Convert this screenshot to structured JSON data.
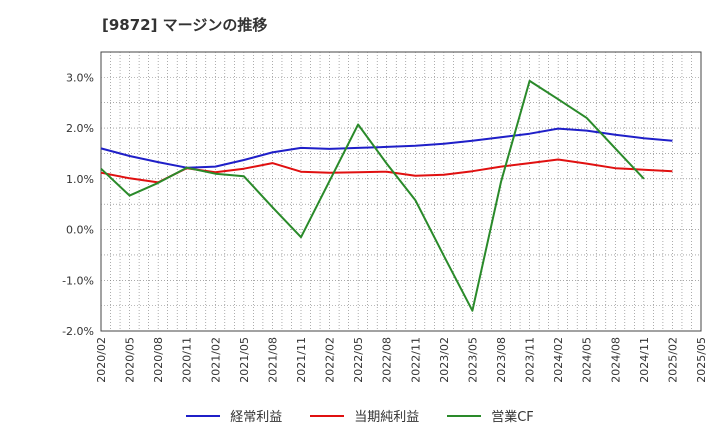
{
  "chart_data": {
    "type": "line",
    "title": "[9872]  マージンの推移",
    "ylim": [
      -2.0,
      3.5
    ],
    "yticks": [
      "3.0%",
      "2.0%",
      "1.0%",
      "0.0%",
      "-1.0%",
      "-2.0%"
    ],
    "ytick_values": [
      3.0,
      2.0,
      1.0,
      0.0,
      -1.0,
      -2.0
    ],
    "x": [
      "2020/02",
      "2020/05",
      "2020/08",
      "2020/11",
      "2021/02",
      "2021/05",
      "2021/08",
      "2021/11",
      "2022/02",
      "2022/05",
      "2022/08",
      "2022/11",
      "2023/02",
      "2023/05",
      "2023/08",
      "2023/11",
      "2024/02",
      "2024/05",
      "2024/08",
      "2024/11",
      "2025/02",
      "2025/05"
    ],
    "grid": true,
    "legend_position": "bottom",
    "series": [
      {
        "name": "経常利益",
        "color": "#1f1fc8",
        "values": [
          1.6,
          1.45,
          1.33,
          1.22,
          1.24,
          1.37,
          1.52,
          1.61,
          1.59,
          1.61,
          1.63,
          1.65,
          1.69,
          1.75,
          1.82,
          1.89,
          1.99,
          1.95,
          1.87,
          1.8,
          1.75,
          null
        ]
      },
      {
        "name": "当期純利益",
        "color": "#e01010",
        "values": [
          1.12,
          1.01,
          0.93,
          1.21,
          1.13,
          1.2,
          1.31,
          1.14,
          1.12,
          1.13,
          1.14,
          1.06,
          1.08,
          1.15,
          1.24,
          1.31,
          1.38,
          1.3,
          1.21,
          1.18,
          1.15,
          null
        ]
      },
      {
        "name": "営業CF",
        "color": "#2a8a2a",
        "values": [
          1.2,
          0.67,
          0.92,
          1.22,
          1.1,
          1.05,
          0.44,
          -0.15,
          0.96,
          2.07,
          1.3,
          0.58,
          -0.52,
          -1.6,
          0.94,
          2.93,
          2.57,
          2.2,
          1.6,
          1.0,
          null,
          null
        ]
      }
    ]
  }
}
